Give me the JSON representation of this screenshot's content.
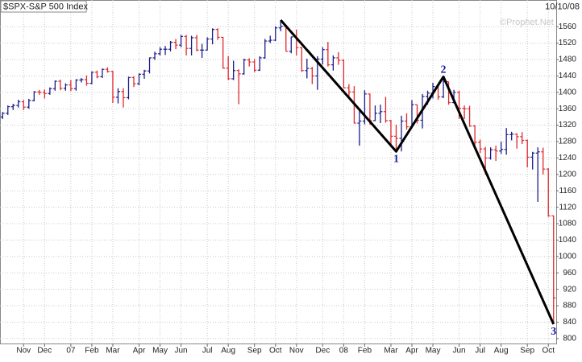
{
  "chart_data": {
    "type": "ohlc",
    "title": "$SPX-S&P 500 Index",
    "date": "10/10/08",
    "watermark": "©Prophet.Net",
    "up_color": "#1c1c8a",
    "down_color": "#e0282c",
    "grid": true,
    "categories": [
      null,
      null,
      null,
      null,
      "Nov",
      null,
      null,
      null,
      "Dec",
      null,
      null,
      null,
      null,
      "07",
      null,
      null,
      null,
      "Feb",
      null,
      null,
      null,
      "Mar",
      null,
      null,
      null,
      null,
      "Apr",
      null,
      null,
      null,
      "May",
      null,
      null,
      null,
      "Jun",
      null,
      null,
      null,
      null,
      "Jul",
      null,
      null,
      null,
      "Aug",
      null,
      null,
      null,
      null,
      "Sep",
      null,
      null,
      null,
      "Oct",
      null,
      null,
      null,
      "Nov",
      null,
      null,
      null,
      null,
      "Dec",
      null,
      null,
      null,
      "08",
      null,
      null,
      null,
      "Feb",
      null,
      null,
      null,
      null,
      "Mar",
      null,
      null,
      null,
      "Apr",
      null,
      null,
      null,
      "May",
      null,
      null,
      null,
      null,
      "Jun",
      null,
      null,
      null,
      "Jul",
      null,
      null,
      null,
      "Aug",
      null,
      null,
      null,
      null,
      "Sep",
      null,
      null,
      null,
      "Oct",
      null
    ],
    "open": [
      1340,
      1349,
      1365,
      1368,
      1377,
      1364,
      1380,
      1401,
      1400,
      1397,
      1409,
      1427,
      1410,
      1418,
      1409,
      1430,
      1431,
      1422,
      1449,
      1438,
      1456,
      1451,
      1388,
      1402,
      1387,
      1436,
      1421,
      1444,
      1452,
      1484,
      1494,
      1505,
      1505,
      1522,
      1515,
      1536,
      1507,
      1533,
      1503,
      1503,
      1530,
      1553,
      1534,
      1459,
      1433,
      1453,
      1445,
      1479,
      1474,
      1454,
      1484,
      1525,
      1527,
      1557,
      1561,
      1500,
      1535,
      1509,
      1453,
      1458,
      1440,
      1481,
      1504,
      1467,
      1484,
      1478,
      1411,
      1401,
      1325,
      1330,
      1396,
      1331,
      1349,
      1353,
      1331,
      1293,
      1288,
      1330,
      1316,
      1370,
      1332,
      1390,
      1398,
      1414,
      1389,
      1426,
      1375,
      1400,
      1361,
      1360,
      1318,
      1278,
      1262,
      1240,
      1260,
      1257,
      1261,
      1297,
      1298,
      1292,
      1283,
      1242,
      1252,
      1255,
      1213,
      1099
    ],
    "high": [
      1352,
      1368,
      1372,
      1382,
      1381,
      1384,
      1403,
      1406,
      1407,
      1412,
      1429,
      1431,
      1422,
      1430,
      1432,
      1435,
      1441,
      1451,
      1453,
      1458,
      1461,
      1452,
      1410,
      1410,
      1438,
      1439,
      1446,
      1455,
      1485,
      1499,
      1510,
      1513,
      1525,
      1530,
      1540,
      1540,
      1538,
      1540,
      1518,
      1534,
      1556,
      1556,
      1535,
      1488,
      1477,
      1456,
      1482,
      1483,
      1481,
      1488,
      1530,
      1538,
      1561,
      1576,
      1563,
      1536,
      1553,
      1510,
      1482,
      1462,
      1488,
      1510,
      1523,
      1490,
      1498,
      1480,
      1420,
      1415,
      1354,
      1405,
      1397,
      1368,
      1370,
      1389,
      1333,
      1321,
      1343,
      1349,
      1381,
      1370,
      1396,
      1404,
      1423,
      1420,
      1440,
      1426,
      1406,
      1404,
      1368,
      1367,
      1320,
      1285,
      1267,
      1266,
      1270,
      1280,
      1313,
      1304,
      1300,
      1303,
      1285,
      1255,
      1266,
      1265,
      1215,
      1100
    ],
    "low": [
      1335,
      1345,
      1357,
      1363,
      1357,
      1360,
      1378,
      1394,
      1385,
      1394,
      1404,
      1405,
      1404,
      1403,
      1404,
      1424,
      1416,
      1420,
      1434,
      1435,
      1448,
      1374,
      1373,
      1363,
      1383,
      1413,
      1417,
      1433,
      1446,
      1479,
      1490,
      1491,
      1500,
      1505,
      1510,
      1490,
      1490,
      1500,
      1484,
      1502,
      1517,
      1528,
      1458,
      1430,
      1430,
      1371,
      1443,
      1463,
      1449,
      1452,
      1482,
      1520,
      1525,
      1549,
      1500,
      1495,
      1490,
      1450,
      1434,
      1420,
      1406,
      1468,
      1463,
      1453,
      1467,
      1410,
      1386,
      1324,
      1270,
      1322,
      1321,
      1330,
      1325,
      1326,
      1272,
      1257,
      1256,
      1309,
      1314,
      1324,
      1312,
      1370,
      1385,
      1382,
      1386,
      1370,
      1373,
      1335,
      1335,
      1316,
      1272,
      1252,
      1200,
      1236,
      1233,
      1250,
      1248,
      1283,
      1263,
      1274,
      1217,
      1212,
      1133,
      1200,
      1097,
      839
    ],
    "close": [
      1349,
      1365,
      1368,
      1377,
      1364,
      1380,
      1401,
      1400,
      1397,
      1409,
      1427,
      1410,
      1418,
      1409,
      1430,
      1431,
      1422,
      1449,
      1438,
      1456,
      1451,
      1388,
      1402,
      1387,
      1436,
      1421,
      1444,
      1452,
      1484,
      1494,
      1505,
      1505,
      1522,
      1515,
      1536,
      1507,
      1533,
      1503,
      1503,
      1530,
      1553,
      1534,
      1459,
      1433,
      1453,
      1445,
      1479,
      1474,
      1454,
      1484,
      1525,
      1527,
      1557,
      1561,
      1500,
      1535,
      1509,
      1453,
      1458,
      1440,
      1481,
      1504,
      1467,
      1484,
      1478,
      1411,
      1401,
      1325,
      1330,
      1396,
      1331,
      1349,
      1353,
      1331,
      1293,
      1288,
      1330,
      1316,
      1370,
      1332,
      1390,
      1398,
      1414,
      1389,
      1426,
      1375,
      1400,
      1361,
      1360,
      1318,
      1278,
      1262,
      1240,
      1260,
      1257,
      1261,
      1297,
      1298,
      1292,
      1283,
      1242,
      1252,
      1255,
      1213,
      1099,
      899
    ],
    "ylim": [
      786,
      1625
    ],
    "yticks": [
      800,
      840,
      880,
      920,
      960,
      1000,
      1040,
      1080,
      1120,
      1160,
      1200,
      1240,
      1280,
      1320,
      1360,
      1400,
      1440,
      1480,
      1520,
      1560
    ],
    "wave": {
      "color": "#000000",
      "label_color": "#1a1aa0",
      "points": [
        {
          "index": 53,
          "value": 1576
        },
        {
          "index": 75,
          "value": 1256,
          "label": "1"
        },
        {
          "index": 84,
          "value": 1438,
          "label": "2"
        },
        {
          "index": 105,
          "value": 835,
          "label": "3"
        }
      ]
    }
  }
}
